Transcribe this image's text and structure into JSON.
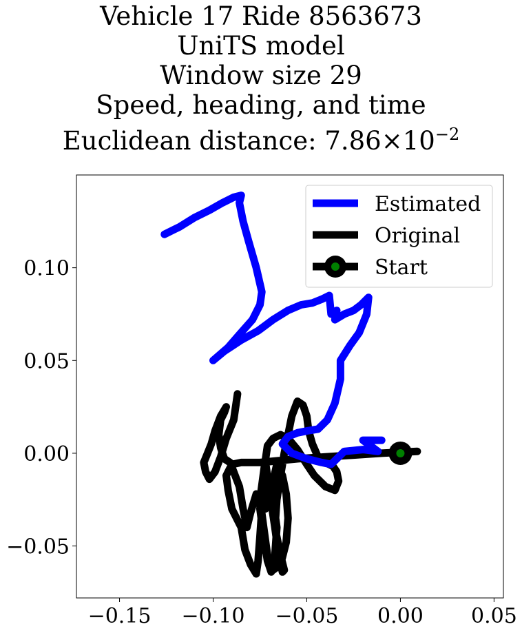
{
  "title_lines": [
    "Vehicle 17 Ride 8563673",
    "UniTS model",
    "Window size 29",
    "Speed, heading, and time"
  ],
  "distance": {
    "prefix": "Euclidean distance: ",
    "mantissa": "7.86",
    "times": "×",
    "base": "10",
    "exponent": "−2"
  },
  "colors": {
    "estimated": "#0000ff",
    "original": "#000000",
    "start_marker": "#008000"
  },
  "chart_data": {
    "type": "line",
    "xlim": [
      -0.173,
      0.055
    ],
    "ylim": [
      -0.078,
      0.15
    ],
    "xticks": [
      -0.15,
      -0.1,
      -0.05,
      0.0,
      0.05
    ],
    "xtick_labels": [
      "−0.15",
      "−0.10",
      "−0.05",
      "0.00",
      "0.05"
    ],
    "yticks": [
      -0.05,
      0.0,
      0.05,
      0.1
    ],
    "ytick_labels": [
      "−0.05",
      "0.00",
      "0.05",
      "0.10"
    ],
    "legend_placement": "upper-right",
    "grid": false,
    "series": [
      {
        "name": "Estimated",
        "x": [
          -0.126,
          -0.118,
          -0.11,
          -0.102,
          -0.095,
          -0.089,
          -0.085,
          -0.086,
          -0.084,
          -0.081,
          -0.077,
          -0.074,
          -0.075,
          -0.079,
          -0.086,
          -0.092,
          -0.1,
          -0.094,
          -0.085,
          -0.076,
          -0.068,
          -0.06,
          -0.053,
          -0.047,
          -0.042,
          -0.038,
          -0.037,
          -0.034,
          -0.035,
          -0.03,
          -0.025,
          -0.021,
          -0.017,
          -0.018,
          -0.022,
          -0.027,
          -0.032,
          -0.032,
          -0.035,
          -0.039,
          -0.044,
          -0.05,
          -0.055,
          -0.06,
          -0.063,
          -0.058,
          -0.05,
          -0.042,
          -0.037,
          -0.035,
          -0.03,
          -0.02,
          -0.012,
          -0.02,
          -0.01
        ],
        "y": [
          0.118,
          0.122,
          0.127,
          0.131,
          0.135,
          0.138,
          0.139,
          0.135,
          0.125,
          0.114,
          0.1,
          0.087,
          0.08,
          0.072,
          0.064,
          0.057,
          0.05,
          0.055,
          0.061,
          0.066,
          0.072,
          0.077,
          0.08,
          0.081,
          0.083,
          0.085,
          0.075,
          0.077,
          0.072,
          0.075,
          0.077,
          0.08,
          0.084,
          0.075,
          0.065,
          0.058,
          0.05,
          0.04,
          0.027,
          0.018,
          0.013,
          0.012,
          0.011,
          0.009,
          0.005,
          0.0,
          -0.003,
          -0.005,
          -0.006,
          -0.004,
          0.001,
          0.002,
          0.001,
          0.007,
          0.007
        ]
      },
      {
        "name": "Original",
        "x": [
          0.009,
          -0.01,
          -0.025,
          -0.04,
          -0.055,
          -0.065,
          -0.075,
          -0.085,
          -0.09,
          -0.093,
          -0.092,
          -0.09,
          -0.085,
          -0.083,
          -0.08,
          -0.077,
          -0.076,
          -0.075,
          -0.074,
          -0.072,
          -0.07,
          -0.068,
          -0.066,
          -0.067,
          -0.069,
          -0.071,
          -0.073,
          -0.075,
          -0.074,
          -0.073,
          -0.072,
          -0.07,
          -0.067,
          -0.064,
          -0.062,
          -0.063,
          -0.065,
          -0.067,
          -0.066,
          -0.064,
          -0.062,
          -0.06,
          -0.058,
          -0.055,
          -0.052,
          -0.05,
          -0.049,
          -0.047,
          -0.044,
          -0.04,
          -0.036,
          -0.034,
          -0.033,
          -0.035,
          -0.04,
          -0.046,
          -0.05,
          -0.055,
          -0.06,
          -0.064,
          -0.068,
          -0.071,
          -0.073,
          -0.075,
          -0.073,
          -0.071,
          -0.068,
          -0.064,
          -0.061,
          -0.06,
          -0.061,
          -0.063,
          -0.066,
          -0.068,
          -0.07,
          -0.072,
          -0.074,
          -0.077,
          -0.08,
          -0.082,
          -0.084,
          -0.086,
          -0.089,
          -0.091,
          -0.094,
          -0.096,
          -0.097,
          -0.096,
          -0.094,
          -0.093,
          -0.096,
          -0.099,
          -0.101,
          -0.103,
          -0.105,
          -0.104,
          -0.102,
          -0.099,
          -0.096,
          -0.093,
          -0.089,
          -0.087
        ],
        "y": [
          0.001,
          0.0,
          -0.001,
          -0.002,
          -0.003,
          -0.004,
          -0.005,
          -0.005,
          -0.006,
          -0.012,
          -0.02,
          -0.03,
          -0.04,
          -0.052,
          -0.06,
          -0.065,
          -0.058,
          -0.045,
          -0.03,
          -0.02,
          -0.015,
          -0.025,
          -0.04,
          -0.055,
          -0.064,
          -0.058,
          -0.045,
          -0.03,
          -0.02,
          -0.01,
          -0.005,
          -0.02,
          -0.04,
          -0.055,
          -0.063,
          -0.064,
          -0.055,
          -0.04,
          -0.025,
          -0.012,
          0.0,
          0.01,
          0.02,
          0.028,
          0.026,
          0.02,
          0.012,
          0.005,
          -0.002,
          -0.005,
          -0.007,
          -0.01,
          -0.015,
          -0.02,
          -0.018,
          -0.012,
          -0.006,
          0.002,
          0.008,
          0.01,
          0.008,
          0.004,
          -0.01,
          -0.025,
          -0.04,
          -0.055,
          -0.063,
          -0.06,
          -0.048,
          -0.035,
          -0.022,
          -0.012,
          -0.006,
          -0.015,
          -0.025,
          -0.03,
          -0.028,
          -0.022,
          -0.032,
          -0.04,
          -0.03,
          -0.018,
          -0.01,
          -0.005,
          -0.003,
          0.003,
          0.01,
          0.018,
          0.022,
          0.025,
          0.02,
          0.012,
          0.005,
          0.0,
          -0.005,
          -0.01,
          -0.014,
          -0.01,
          -0.002,
          0.008,
          0.018,
          0.032
        ]
      }
    ],
    "start_point": {
      "name": "Start",
      "x": 0.0,
      "y": 0.0
    }
  }
}
